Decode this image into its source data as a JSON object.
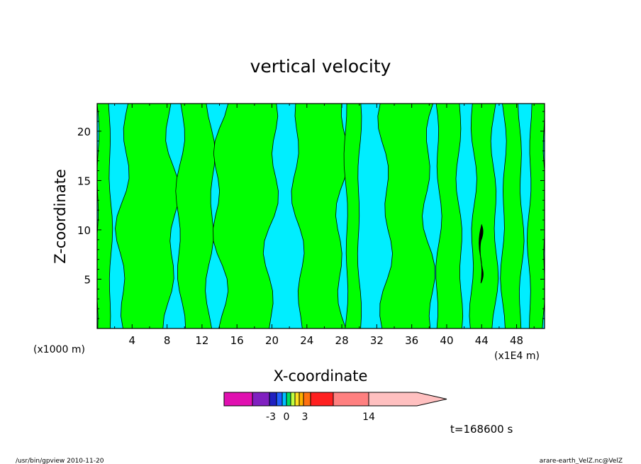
{
  "chart_data": {
    "type": "heatmap",
    "title": "vertical velocity",
    "xlabel": "X-coordinate",
    "ylabel": "Z-coordinate",
    "x_unit_left": "(x1000 m)",
    "x_unit_right": "(x1E4 m)",
    "xlim": [
      0,
      51.2
    ],
    "ylim": [
      0,
      22.8
    ],
    "x_ticks": [
      4,
      8,
      12,
      16,
      20,
      24,
      28,
      32,
      36,
      40,
      44,
      48
    ],
    "y_ticks": [
      5,
      10,
      15,
      20
    ],
    "time_label": "t=168600 s",
    "colorbar": {
      "tick_labels": [
        "-3",
        "0",
        "3",
        "14"
      ],
      "colors": [
        "#e010b0",
        "#8020c0",
        "#2020c0",
        "#2060ff",
        "#00c0ff",
        "#00e060",
        "#c0ff40",
        "#ffe020",
        "#ffb000",
        "#ff7010",
        "#ff2020",
        "#ff8080",
        "#ffc0c0"
      ]
    },
    "field_colors": {
      "positive": "#00ff00",
      "negative": "#00eeff",
      "strong_positive": "#ff7010"
    },
    "updraft_bands_x": [
      [
        0,
        1.5
      ],
      [
        3,
        8.5
      ],
      [
        9.5,
        13
      ],
      [
        14,
        20
      ],
      [
        23,
        28
      ],
      [
        28.5,
        30
      ],
      [
        33,
        38
      ],
      [
        39,
        41.5
      ],
      [
        43,
        45.5
      ],
      [
        46.5,
        48.5
      ],
      [
        49.5,
        51.2
      ]
    ]
  },
  "footer": {
    "left": "/usr/bin/gpview   2010-11-20",
    "right": "arare-earth_VelZ.nc@VelZ"
  }
}
